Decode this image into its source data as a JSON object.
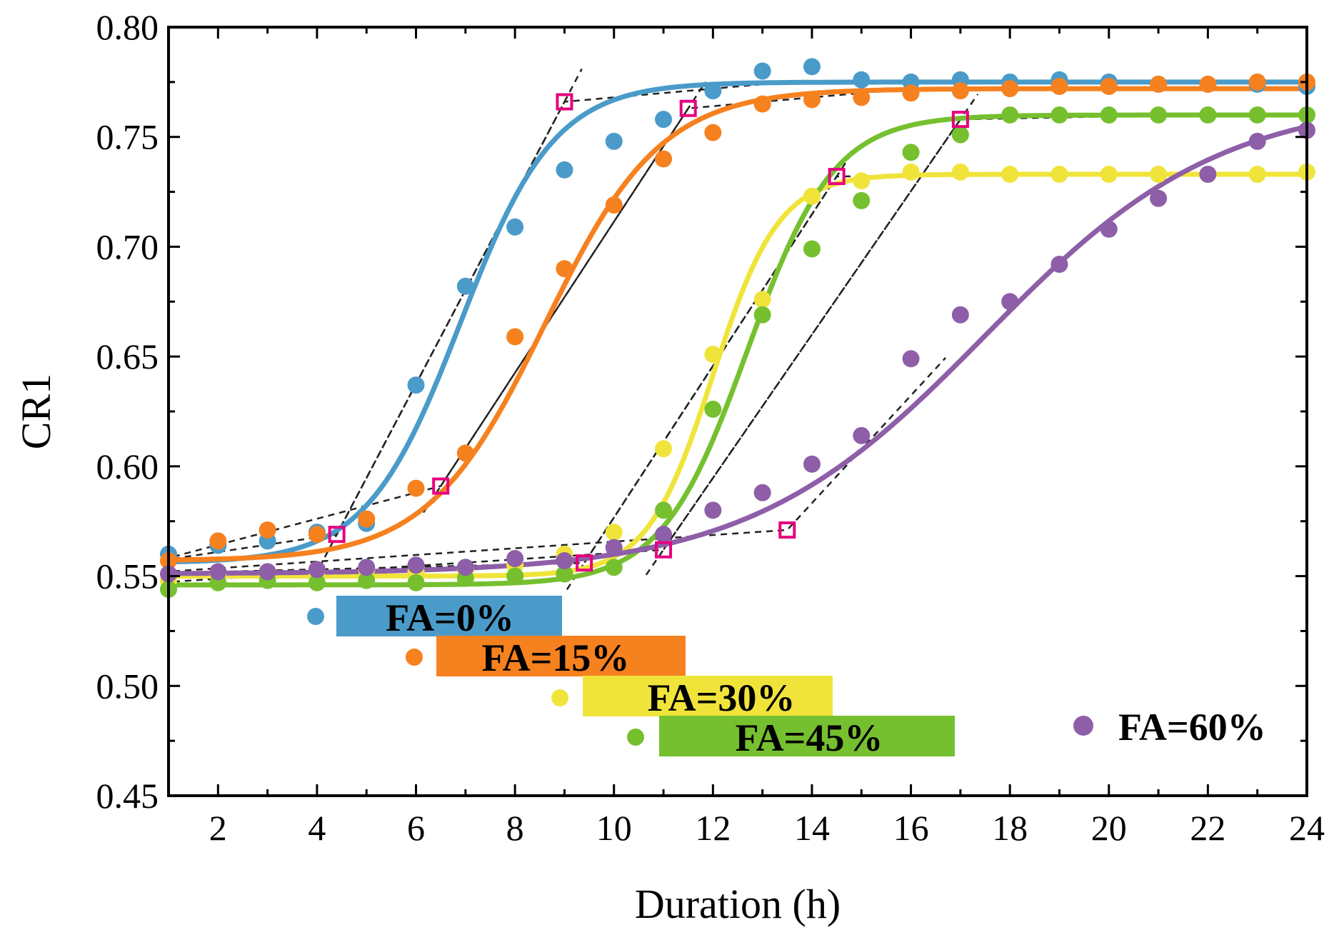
{
  "chart_data": {
    "type": "scatter",
    "title": "",
    "xlabel": "Duration (h)",
    "ylabel": "CR1",
    "xlim": [
      1,
      24
    ],
    "ylim": [
      0.45,
      0.8
    ],
    "x_ticks": [
      2,
      4,
      6,
      8,
      10,
      12,
      14,
      16,
      18,
      20,
      22,
      24
    ],
    "x_tick_labels": [
      "2",
      "4",
      "6",
      "8",
      "10",
      "12",
      "14",
      "16",
      "18",
      "20",
      "22",
      "24"
    ],
    "y_ticks": [
      0.45,
      0.5,
      0.55,
      0.6,
      0.65,
      0.7,
      0.75,
      0.8
    ],
    "y_tick_labels": [
      "0.45",
      "0.50",
      "0.55",
      "0.60",
      "0.65",
      "0.70",
      "0.75",
      "0.80"
    ],
    "grid": false,
    "marker_color": "#e6007e",
    "series": [
      {
        "name": "FA=0%",
        "color": "#4a9bc9",
        "x": [
          1,
          2,
          3,
          4,
          5,
          6,
          7,
          8,
          9,
          10,
          11,
          12,
          13,
          14,
          15,
          16,
          17,
          18,
          19,
          20,
          21,
          22,
          23,
          24
        ],
        "y": [
          0.56,
          0.564,
          0.566,
          0.57,
          0.574,
          0.637,
          0.682,
          0.709,
          0.735,
          0.748,
          0.758,
          0.771,
          0.78,
          0.782,
          0.776,
          0.775,
          0.776,
          0.775,
          0.776,
          0.775,
          0.774,
          0.774,
          0.774,
          0.773
        ],
        "fit": {
          "base": 0.556,
          "top": 0.775,
          "mid": 6.9,
          "slope": 1.05
        },
        "marker_x": [
          4.4,
          9.0
        ],
        "marker_y": [
          0.569,
          0.766
        ]
      },
      {
        "name": "FA=15%",
        "color": "#f6811f",
        "x": [
          1,
          2,
          3,
          4,
          5,
          6,
          7,
          8,
          9,
          10,
          11,
          12,
          13,
          14,
          15,
          16,
          17,
          18,
          19,
          20,
          21,
          22,
          23,
          24
        ],
        "y": [
          0.557,
          0.566,
          0.571,
          0.569,
          0.576,
          0.59,
          0.606,
          0.659,
          0.69,
          0.719,
          0.74,
          0.752,
          0.765,
          0.767,
          0.768,
          0.77,
          0.771,
          0.772,
          0.773,
          0.773,
          0.774,
          0.774,
          0.775,
          0.775
        ],
        "fit": {
          "base": 0.557,
          "top": 0.772,
          "mid": 8.6,
          "slope": 0.85
        },
        "marker_x": [
          6.5,
          11.5
        ],
        "marker_y": [
          0.591,
          0.763
        ]
      },
      {
        "name": "FA=30%",
        "color": "#f0e43b",
        "x": [
          1,
          2,
          3,
          4,
          5,
          6,
          7,
          8,
          9,
          10,
          11,
          12,
          13,
          14,
          15,
          16,
          17,
          18,
          19,
          20,
          21,
          22,
          23,
          24
        ],
        "y": [
          0.548,
          0.551,
          0.552,
          0.55,
          0.553,
          0.552,
          0.553,
          0.555,
          0.56,
          0.57,
          0.608,
          0.651,
          0.676,
          0.723,
          0.73,
          0.734,
          0.734,
          0.733,
          0.733,
          0.733,
          0.733,
          0.733,
          0.733,
          0.734
        ],
        "fit": {
          "base": 0.55,
          "top": 0.733,
          "mid": 12.0,
          "slope": 1.5
        },
        "marker_x": [
          9.4,
          14.5
        ],
        "marker_y": [
          0.556,
          0.732
        ]
      },
      {
        "name": "FA=45%",
        "color": "#76c02f",
        "x": [
          1,
          2,
          3,
          4,
          5,
          6,
          7,
          8,
          9,
          10,
          11,
          12,
          13,
          14,
          15,
          16,
          17,
          18,
          19,
          20,
          21,
          22,
          23,
          24
        ],
        "y": [
          0.544,
          0.547,
          0.548,
          0.547,
          0.548,
          0.547,
          0.549,
          0.55,
          0.551,
          0.554,
          0.58,
          0.626,
          0.669,
          0.699,
          0.721,
          0.743,
          0.751,
          0.76,
          0.76,
          0.76,
          0.76,
          0.76,
          0.76,
          0.76
        ],
        "fit": {
          "base": 0.546,
          "top": 0.76,
          "mid": 12.7,
          "slope": 1.15
        },
        "marker_x": [
          11.0,
          17.0
        ],
        "marker_y": [
          0.562,
          0.758
        ]
      },
      {
        "name": "FA=60%",
        "color": "#8e5ea8",
        "x": [
          1,
          2,
          3,
          4,
          5,
          6,
          7,
          8,
          9,
          10,
          11,
          12,
          13,
          14,
          15,
          16,
          17,
          18,
          19,
          20,
          21,
          22,
          23,
          24
        ],
        "y": [
          0.551,
          0.552,
          0.552,
          0.553,
          0.554,
          0.555,
          0.554,
          0.558,
          0.557,
          0.563,
          0.569,
          0.58,
          0.588,
          0.601,
          0.614,
          0.649,
          0.669,
          0.675,
          0.692,
          0.708,
          0.722,
          0.733,
          0.748,
          0.753
        ],
        "fit": {
          "base": 0.551,
          "top": 0.768,
          "mid": 17.5,
          "slope": 0.42
        },
        "marker_x": [
          13.5
        ],
        "marker_y": [
          0.571
        ]
      }
    ],
    "legend": [
      {
        "label": "FA=0%",
        "color": "#4a9bc9"
      },
      {
        "label": "FA=15%",
        "color": "#f6811f"
      },
      {
        "label": "FA=30%",
        "color": "#f0e43b"
      },
      {
        "label": "FA=45%",
        "color": "#76c02f"
      },
      {
        "label": "FA=60%",
        "color": "#8e5ea8"
      }
    ]
  }
}
